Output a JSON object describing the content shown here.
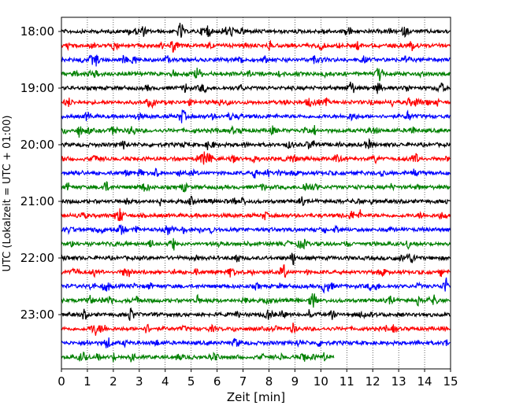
{
  "chart_data": {
    "type": "line",
    "title": "",
    "xlabel": "Zeit  [min]",
    "ylabel": "UTC (Lokalzeit = UTC + 01:00)",
    "xlim": [
      0,
      15
    ],
    "x_ticks": [
      0,
      1,
      2,
      3,
      4,
      5,
      6,
      7,
      8,
      9,
      10,
      11,
      12,
      13,
      14,
      15
    ],
    "x_tick_labels": [
      "0",
      "1",
      "2",
      "3",
      "4",
      "5",
      "6",
      "7",
      "8",
      "9",
      "10",
      "11",
      "12",
      "13",
      "14",
      "15"
    ],
    "y_tick_labels": [
      "18:00",
      "19:00",
      "20:00",
      "21:00",
      "22:00",
      "23:00"
    ],
    "grid": "vertical dotted lines at each minute",
    "legend": "none",
    "trace_minutes": 15,
    "trace_colors": [
      "#000000",
      "#ff0000",
      "#0000ff",
      "#008000"
    ],
    "traces": [
      {
        "start": "18:00",
        "x_end": 15
      },
      {
        "start": "18:15",
        "x_end": 15
      },
      {
        "start": "18:30",
        "x_end": 15
      },
      {
        "start": "18:45",
        "x_end": 15
      },
      {
        "start": "19:00",
        "x_end": 15
      },
      {
        "start": "19:15",
        "x_end": 15
      },
      {
        "start": "19:30",
        "x_end": 15
      },
      {
        "start": "19:45",
        "x_end": 15
      },
      {
        "start": "20:00",
        "x_end": 15
      },
      {
        "start": "20:15",
        "x_end": 15
      },
      {
        "start": "20:30",
        "x_end": 15
      },
      {
        "start": "20:45",
        "x_end": 15
      },
      {
        "start": "21:00",
        "x_end": 15
      },
      {
        "start": "21:15",
        "x_end": 15
      },
      {
        "start": "21:30",
        "x_end": 15
      },
      {
        "start": "21:45",
        "x_end": 15
      },
      {
        "start": "22:00",
        "x_end": 15
      },
      {
        "start": "22:15",
        "x_end": 15
      },
      {
        "start": "22:30",
        "x_end": 15
      },
      {
        "start": "22:45",
        "x_end": 15
      },
      {
        "start": "23:00",
        "x_end": 15
      },
      {
        "start": "23:15",
        "x_end": 15
      },
      {
        "start": "23:30",
        "x_end": 15
      },
      {
        "start": "23:45",
        "x_end": 10.5
      }
    ]
  }
}
